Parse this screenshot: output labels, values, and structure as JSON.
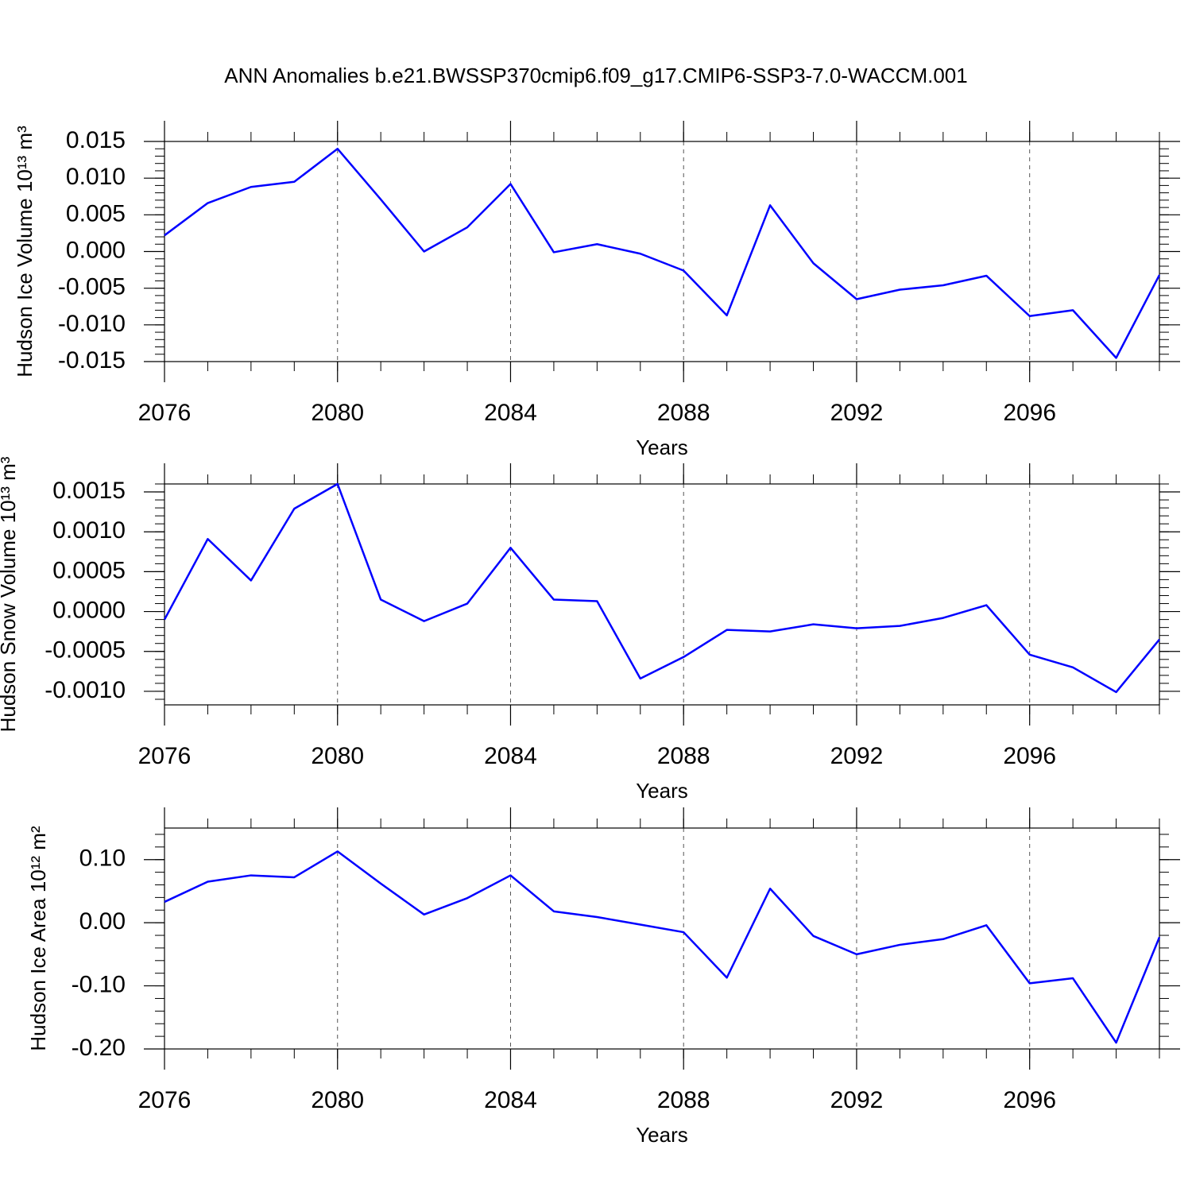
{
  "chart_data": [
    {
      "type": "line",
      "title": "ANN Anomalies b.e21.BWSSP370cmip6.f09_g17.CMIP6-SSP3-7.0-WACCM.001",
      "xlabel": "Years",
      "ylabel": "Hudson Ice Volume 10¹³ m³",
      "x": [
        2076,
        2077,
        2078,
        2079,
        2080,
        2081,
        2082,
        2083,
        2084,
        2085,
        2086,
        2087,
        2088,
        2089,
        2090,
        2091,
        2092,
        2093,
        2094,
        2095,
        2096,
        2097,
        2098,
        2099
      ],
      "series": [
        {
          "color": "#0000ff",
          "values": [
            0.0022,
            0.0066,
            0.0088,
            0.0095,
            0.014,
            0.0071,
            0.0,
            0.0033,
            0.0092,
            -0.0001,
            0.001,
            -0.0003,
            -0.0026,
            -0.0087,
            0.0063,
            -0.0016,
            -0.0065,
            -0.0052,
            -0.0046,
            -0.0033,
            -0.0088,
            -0.008,
            -0.0145,
            -0.0032
          ]
        }
      ],
      "xlim": [
        2076,
        2099
      ],
      "xticks": [
        2076,
        2080,
        2084,
        2088,
        2092,
        2096
      ],
      "ylim": [
        -0.015,
        0.015
      ],
      "yticks": [
        -0.015,
        {
          "value": -0.01,
          "label": "-0.010"
        },
        -0.005,
        {
          "value": 0,
          "label": "0.000"
        },
        0.005,
        {
          "value": 0.01,
          "label": "0.010"
        },
        0.015
      ],
      "xgrid": true
    },
    {
      "type": "line",
      "xlabel": "Years",
      "ylabel": "Hudson Snow Volume 10¹³ m³",
      "x": [
        2076,
        2077,
        2078,
        2079,
        2080,
        2081,
        2082,
        2083,
        2084,
        2085,
        2086,
        2087,
        2088,
        2089,
        2090,
        2091,
        2092,
        2093,
        2094,
        2095,
        2096,
        2097,
        2098,
        2099
      ],
      "series": [
        {
          "color": "#0000ff",
          "values": [
            -0.0001,
            0.00091,
            0.00039,
            0.00129,
            0.0016,
            0.00015,
            -0.00012,
            0.0001,
            0.0008,
            0.00015,
            0.00013,
            -0.00084,
            -0.00057,
            -0.00023,
            -0.00025,
            -0.00016,
            -0.00021,
            -0.00018,
            -8e-05,
            8e-05,
            -0.00054,
            -0.0007,
            -0.00101,
            -0.00035
          ]
        }
      ],
      "xlim": [
        2076,
        2099
      ],
      "xticks": [
        2076,
        2080,
        2084,
        2088,
        2092,
        2096
      ],
      "ylim": [
        -0.00117,
        0.0016
      ],
      "yticks": [
        {
          "value": -0.001,
          "label": "-0.0010"
        },
        -0.0005,
        {
          "value": 0,
          "label": "0.0000"
        },
        0.0005,
        {
          "value": 0.001,
          "label": "0.0010"
        },
        0.0015
      ],
      "xgrid": true
    },
    {
      "type": "line",
      "xlabel": "Years",
      "ylabel": "Hudson Ice Area 10¹² m²",
      "x": [
        2076,
        2077,
        2078,
        2079,
        2080,
        2081,
        2082,
        2083,
        2084,
        2085,
        2086,
        2087,
        2088,
        2089,
        2090,
        2091,
        2092,
        2093,
        2094,
        2095,
        2096,
        2097,
        2098,
        2099
      ],
      "series": [
        {
          "color": "#0000ff",
          "values": [
            0.033,
            0.065,
            0.075,
            0.072,
            0.113,
            0.062,
            0.013,
            0.039,
            0.075,
            0.018,
            0.009,
            -0.003,
            -0.015,
            -0.087,
            0.054,
            -0.021,
            -0.05,
            -0.035,
            -0.026,
            -0.004,
            -0.096,
            -0.088,
            -0.19,
            -0.023
          ]
        }
      ],
      "xlim": [
        2076,
        2099
      ],
      "xticks": [
        2076,
        2080,
        2084,
        2088,
        2092,
        2096
      ],
      "ylim": [
        -0.2,
        0.15
      ],
      "yticks": [
        {
          "value": -0.2,
          "label": "-0.20"
        },
        {
          "value": -0.1,
          "label": "-0.10"
        },
        {
          "value": 0,
          "label": "0.00"
        },
        {
          "value": 0.1,
          "label": "0.10"
        }
      ],
      "xgrid": true
    }
  ]
}
